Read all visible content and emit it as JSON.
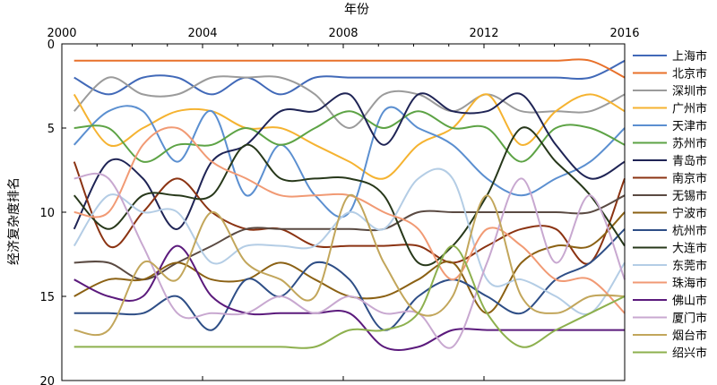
{
  "chart_data": {
    "type": "line",
    "xlabel": "年份",
    "ylabel": "经济复杂度排名",
    "xlim": [
      2000,
      2016
    ],
    "ylim": [
      0,
      20
    ],
    "y_reversed": true,
    "x_ticks": [
      2000,
      2004,
      2008,
      2012,
      2016
    ],
    "y_ticks": [
      0,
      5,
      10,
      15,
      20
    ],
    "grid": false,
    "legend_position": "right",
    "x": [
      2000,
      2001,
      2002,
      2003,
      2004,
      2005,
      2006,
      2007,
      2008,
      2009,
      2010,
      2011,
      2012,
      2013,
      2014,
      2015,
      2016
    ],
    "series": [
      {
        "name": "上海市",
        "color": "#4169b8",
        "values": [
          2,
          3,
          2,
          2,
          3,
          2,
          3,
          2,
          2,
          2,
          2,
          2,
          2,
          2,
          2,
          2,
          1
        ]
      },
      {
        "name": "北京市",
        "color": "#e8702a",
        "values": [
          1,
          1,
          1,
          1,
          1,
          1,
          1,
          1,
          1,
          1,
          1,
          1,
          1,
          1,
          1,
          1,
          2
        ]
      },
      {
        "name": "深圳市",
        "color": "#9b9b9b",
        "values": [
          4,
          2,
          3,
          3,
          2,
          2,
          2,
          3,
          5,
          3,
          3,
          4,
          3,
          4,
          4,
          4,
          3
        ]
      },
      {
        "name": "广州市",
        "color": "#f5b331",
        "values": [
          3,
          6,
          5,
          4,
          4,
          5,
          5,
          6,
          7,
          8,
          6,
          5,
          3,
          6,
          4,
          3,
          4
        ]
      },
      {
        "name": "天津市",
        "color": "#5b8fd0",
        "values": [
          6,
          4,
          4,
          7,
          4,
          9,
          6,
          9,
          10,
          4,
          5,
          6,
          8,
          9,
          8,
          7,
          5
        ]
      },
      {
        "name": "苏州市",
        "color": "#5da345",
        "values": [
          5,
          5,
          7,
          6,
          6,
          5,
          6,
          5,
          4,
          5,
          4,
          5,
          5,
          7,
          5,
          5,
          6
        ]
      },
      {
        "name": "青岛市",
        "color": "#1f2455",
        "values": [
          11,
          7,
          8,
          11,
          7,
          6,
          4,
          4,
          3,
          6,
          3,
          4,
          4,
          3,
          6,
          8,
          7
        ]
      },
      {
        "name": "南京市",
        "color": "#8b3312",
        "values": [
          7,
          12,
          10,
          8,
          10,
          11,
          11,
          12,
          12,
          12,
          12,
          13,
          12,
          11,
          11,
          13,
          8
        ]
      },
      {
        "name": "无锡市",
        "color": "#5a4a42",
        "values": [
          13,
          13,
          14,
          13,
          12,
          11,
          11,
          11,
          11,
          11,
          10,
          10,
          10,
          10,
          10,
          10,
          9
        ]
      },
      {
        "name": "宁波市",
        "color": "#8b6114",
        "values": [
          15,
          14,
          14,
          13,
          14,
          14,
          13,
          14,
          15,
          15,
          14,
          13,
          16,
          13,
          12,
          12,
          10
        ]
      },
      {
        "name": "杭州市",
        "color": "#2e4e86",
        "values": [
          16,
          16,
          16,
          15,
          17,
          14,
          15,
          13,
          14,
          17,
          15,
          14,
          15,
          16,
          14,
          13,
          11
        ]
      },
      {
        "name": "大连市",
        "color": "#27381a",
        "values": [
          9,
          11,
          9,
          9,
          9,
          6,
          8,
          8,
          8,
          9,
          13,
          12,
          9,
          5,
          7,
          9,
          12
        ]
      },
      {
        "name": "东莞市",
        "color": "#b4cde5",
        "values": [
          12,
          9,
          10,
          10,
          13,
          12,
          12,
          12,
          10,
          11,
          8,
          8,
          14,
          14,
          15,
          16,
          13
        ]
      },
      {
        "name": "珠海市",
        "color": "#f19a74",
        "values": [
          10,
          10,
          6,
          5,
          7,
          8,
          9,
          9,
          9,
          10,
          11,
          14,
          11,
          12,
          14,
          14,
          16
        ]
      },
      {
        "name": "佛山市",
        "color": "#5b1a7c",
        "values": [
          14,
          15,
          15,
          12,
          15,
          16,
          16,
          16,
          16,
          18,
          18,
          17,
          17,
          17,
          17,
          17,
          17
        ]
      },
      {
        "name": "厦门市",
        "color": "#c8a8d0",
        "values": [
          8,
          8,
          12,
          16,
          16,
          16,
          15,
          16,
          15,
          16,
          16,
          18,
          13,
          8,
          13,
          9,
          14
        ]
      },
      {
        "name": "烟台市",
        "color": "#c2a65b",
        "values": [
          17,
          17,
          13,
          14,
          10,
          13,
          14,
          15,
          9,
          13,
          16,
          15,
          9,
          15,
          16,
          15,
          15
        ]
      },
      {
        "name": "绍兴市",
        "color": "#8db04e",
        "values": [
          18,
          18,
          18,
          18,
          18,
          18,
          18,
          18,
          17,
          17,
          16,
          12,
          16,
          18,
          17,
          16,
          15
        ]
      }
    ]
  }
}
